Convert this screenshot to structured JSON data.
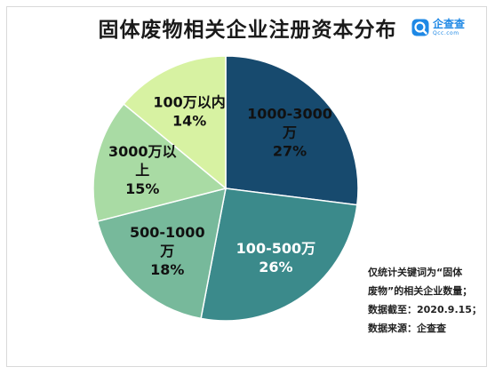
{
  "title": "固体废物相关企业注册资本分布",
  "brand": {
    "name": "企查查",
    "domain": "Qcc.com",
    "icon": "qcc-logo-icon",
    "color": "#1e88e5"
  },
  "chart_data": {
    "type": "pie",
    "start_angle_deg": 0,
    "direction": "clockwise",
    "slices": [
      {
        "label_lines": [
          "1000-3000",
          "万",
          "27%"
        ],
        "category": "1000-3000万",
        "value": 27,
        "color": "#174a6e",
        "text_color": "#111111"
      },
      {
        "label_lines": [
          "100-500万",
          "26%"
        ],
        "category": "100-500万",
        "value": 26,
        "color": "#3b8a8b",
        "text_color": "#ffffff"
      },
      {
        "label_lines": [
          "500-1000",
          "万",
          "18%"
        ],
        "category": "500-1000万",
        "value": 18,
        "color": "#77b99b",
        "text_color": "#111111"
      },
      {
        "label_lines": [
          "3000万以",
          "上",
          "15%"
        ],
        "category": "3000万以上",
        "value": 15,
        "color": "#a9dba4",
        "text_color": "#111111"
      },
      {
        "label_lines": [
          "100万以内",
          "14%"
        ],
        "category": "100万以内",
        "value": 14,
        "color": "#d7f2a2",
        "text_color": "#111111"
      }
    ]
  },
  "notes": [
    "仅统计关键词为“固体",
    "废物”的相关企业数量；",
    "数据截至：2020.9.15；",
    "数据来源：企查查"
  ]
}
